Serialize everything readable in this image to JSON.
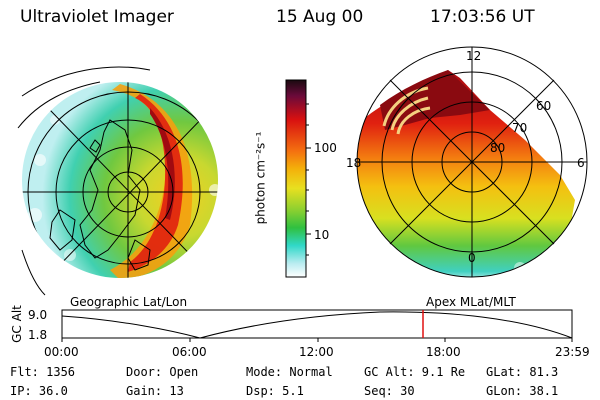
{
  "header": {
    "instrument": "Ultraviolet Imager",
    "date": "15 Aug 00",
    "time": "17:03:56 UT"
  },
  "colorbar": {
    "unit_label": "photon cm⁻²s⁻¹",
    "ticks": [
      "100",
      "10"
    ]
  },
  "left_panel": {
    "caption": "Geographic Lat/Lon"
  },
  "right_panel": {
    "caption": "Apex MLat/MLT",
    "lat_labels": [
      "60",
      "70",
      "80"
    ],
    "mlt_labels": [
      "12",
      "18",
      "6",
      "0"
    ]
  },
  "altitude_plot": {
    "ylabel": "GC Alt",
    "y_ticks": [
      "9.0",
      "1.8"
    ],
    "x_ticks": [
      "00:00",
      "06:00",
      "12:00",
      "18:00",
      "23:59"
    ],
    "current_time_marker": "17:03"
  },
  "info": {
    "flt": "Flt: 1356",
    "ip": "IP: 36.0",
    "door": "Door: Open",
    "gain": "Gain: 13",
    "mode": "Mode: Normal",
    "dsp": "Dsp:    5.1",
    "gc_alt": "GC Alt: 9.1 Re",
    "seq": "Seq: 30",
    "glat": "GLat:  81.3",
    "glon": "GLon:  38.1"
  },
  "colors": {
    "bar_top": "#1a0a10",
    "bar_red": "#d81010",
    "bar_orange": "#f49a0a",
    "bar_yellow": "#e8e020",
    "bar_green": "#30c040",
    "bar_cyan": "#30d8c8",
    "bar_bottom": "#ffffff",
    "marker": "#e01010"
  }
}
